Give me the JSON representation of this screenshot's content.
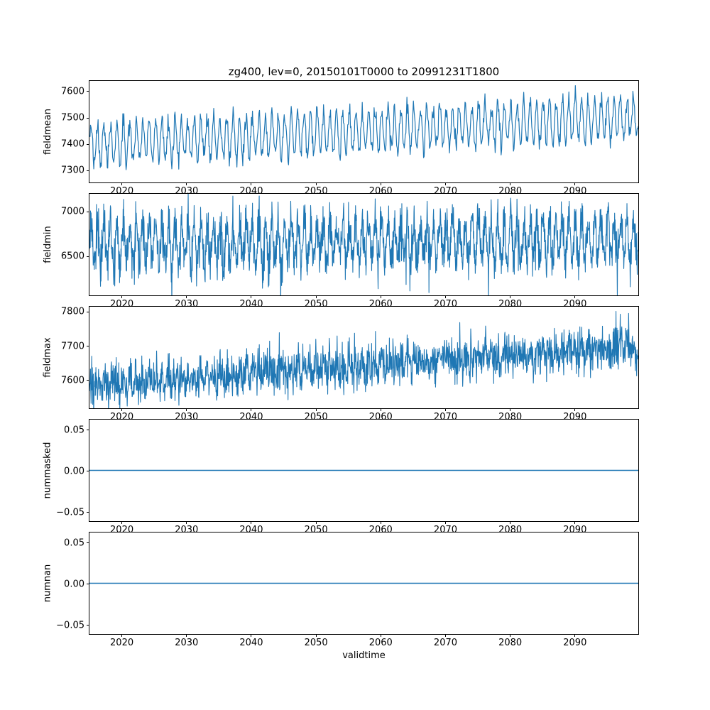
{
  "chart_data": {
    "type": "line",
    "title": "zg400, lev=0, 20150101T0000 to 20991231T1800",
    "xlabel": "validtime",
    "x_range": [
      2015,
      2100
    ],
    "xticks": [
      2020,
      2030,
      2040,
      2050,
      2060,
      2070,
      2080,
      2090
    ],
    "line_color": "#1f77b4",
    "grid": false,
    "legend": false,
    "subplots": [
      {
        "ylabel": "fieldmean",
        "ylim": [
          7250,
          7640
        ],
        "yticks": [
          7300,
          7400,
          7500,
          7600
        ],
        "ytick_decimals": 0,
        "trend": [
          7395,
          7500
        ],
        "oscillation_amplitude": 78,
        "noise_sd": 17,
        "points_per_year": 12,
        "line_width": 1.2
      },
      {
        "ylabel": "fieldmin",
        "ylim": [
          6050,
          7200
        ],
        "yticks": [
          6500,
          7000
        ],
        "ytick_decimals": 0,
        "trend": [
          6630,
          6700
        ],
        "oscillation_amplitude": 220,
        "noise_sd": 120,
        "points_per_year": 24,
        "spike": {
          "prob": 0.03,
          "magnitude": -260
        },
        "line_width": 1.1
      },
      {
        "ylabel": "fieldmax",
        "ylim": [
          7515,
          7815
        ],
        "yticks": [
          7600,
          7700,
          7800
        ],
        "ytick_decimals": 0,
        "trend": [
          7580,
          7695
        ],
        "oscillation_amplitude": 16,
        "noise_sd": 30,
        "points_per_year": 20,
        "spike": {
          "prob": 0.04,
          "magnitude": 55
        },
        "line_width": 1.1
      },
      {
        "ylabel": "nummasked",
        "ylim": [
          -0.0625,
          0.0625
        ],
        "yticks": [
          -0.05,
          0,
          0.05
        ],
        "ytick_decimals": 2,
        "constant": 0,
        "line_width": 1.5
      },
      {
        "ylabel": "numnan",
        "ylim": [
          -0.0625,
          0.0625
        ],
        "yticks": [
          -0.05,
          0,
          0.05
        ],
        "ytick_decimals": 2,
        "constant": 0,
        "line_width": 1.5
      }
    ]
  }
}
